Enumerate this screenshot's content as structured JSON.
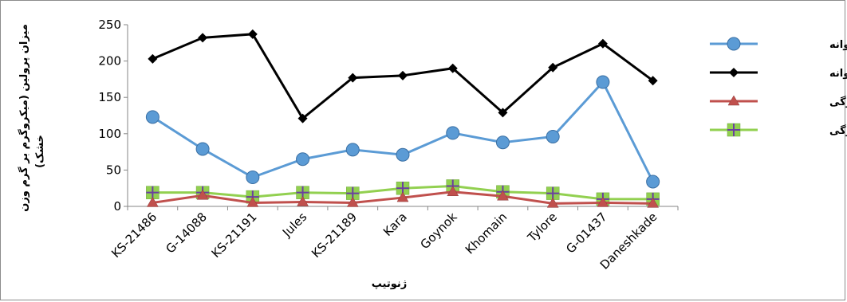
{
  "chart_data": {
    "type": "line",
    "categories": [
      "KS-21486",
      "G-14088",
      "KS-21191",
      "Jules",
      "KS-21189",
      "Kara",
      "Goynok",
      "Khomain",
      "Tylore",
      "G-01437",
      "Daneshkade"
    ],
    "ylim": [
      0,
      250
    ],
    "yticks": [
      0,
      50,
      100,
      150,
      200,
      250
    ],
    "xlabel": "ژنوتیپ",
    "ylabel_line1": "میزان پرولین (میکروگرم بر گرم وزن",
    "ylabel_line2": "خشک)",
    "grid": false,
    "legend_position": "right",
    "series": [
      {
        "name": "کنترل جوانه",
        "color": "#5b9bd5",
        "marker": "circle",
        "values": [
          123,
          79,
          40,
          65,
          78,
          71,
          101,
          88,
          96,
          171,
          34
        ]
      },
      {
        "name": "تنش جوانه",
        "color": "#000000",
        "marker": "diamond",
        "values": [
          203,
          232,
          237,
          121,
          177,
          180,
          190,
          129,
          191,
          224,
          173
        ]
      },
      {
        "name": "کنترل برگی",
        "color": "#c0504d",
        "marker": "triangle",
        "values": [
          5,
          15,
          5,
          6,
          5,
          12,
          20,
          14,
          4,
          5,
          4
        ]
      },
      {
        "name": "تنش برگی",
        "color": "#92d050",
        "marker": "square-plus",
        "values": [
          19,
          19,
          13,
          19,
          18,
          25,
          28,
          20,
          18,
          10,
          10
        ]
      }
    ]
  }
}
